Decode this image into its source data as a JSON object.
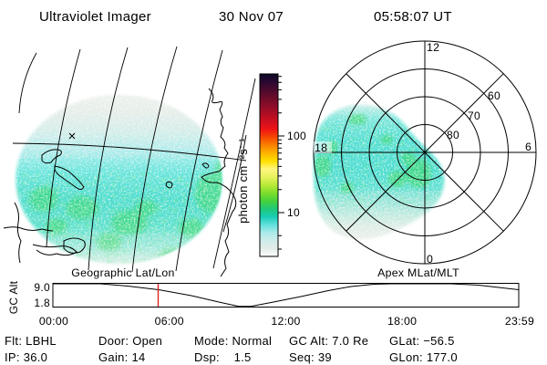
{
  "palette": {
    "background": "#ffffff",
    "foreground": "#000000",
    "data_cyan": "#47dcd0",
    "data_green": "#30d455",
    "data_pale_gray": "#d9dedb",
    "marker_red": "#dd2222"
  },
  "header": {
    "instrument": "Ultraviolet Imager",
    "date": "30 Nov 07",
    "time": "05:58:07 UT"
  },
  "geo_panel": {
    "caption": "Geographic Lat/Lon"
  },
  "colorbar": {
    "label": "photon cm⁻²s⁻¹",
    "tick_labels": [
      "100",
      "10"
    ],
    "colors_top_to_bottom": [
      "#0a0a28",
      "#2b0830",
      "#4a0a2e",
      "#6b0c2a",
      "#8c0d28",
      "#ad0e24",
      "#d01020",
      "#ee1414",
      "#f64a00",
      "#fa8200",
      "#fdb400",
      "#ffe000",
      "#fff780",
      "#e8f25c",
      "#b8ea38",
      "#7ede2c",
      "#46d23c",
      "#20c878",
      "#18ccb4",
      "#60e0dc",
      "#aaeae8",
      "#cfeceb",
      "#e2ece7",
      "#ffffff"
    ]
  },
  "polar_panel": {
    "caption": "Apex MLat/MLT",
    "mlt_top": "12",
    "mlt_left": "18",
    "mlt_right": "6",
    "mlt_bottom": "0",
    "mlat_ring_labels": [
      "80",
      "70",
      "60"
    ]
  },
  "orbit_chart": {
    "ylabel": "GC Alt",
    "ytick_top": "9.0",
    "ytick_bottom": "1.8",
    "xtick_labels": [
      "00:00",
      "06:00",
      "12:00",
      "18:00",
      "23:59"
    ],
    "marker_color": "#dd2222"
  },
  "status": {
    "row1": [
      "Flt: LBHL",
      "Door: Open",
      "Mode: Normal",
      "GC Alt: 7.0 Re",
      "GLat: −56.5"
    ],
    "row2": [
      "IP: 36.0",
      "Gain: 14",
      "Dsp:    1.5",
      "Seq: 39",
      "GLon: 177.0"
    ]
  },
  "chart_data": [
    {
      "type": "heatmap",
      "name": "geographic-uv-image",
      "title": "Geographic Lat/Lon",
      "colorscale_label": "photon cm⁻²s⁻¹",
      "colorscale_ticks": [
        100,
        10
      ],
      "scale": "log",
      "description": "Circular UV imager field of view over southern-hemisphere Pacific (New Zealand visible); faint gray airglow at top, cyan ~5-8 photons, green patches ~10-20 photons in lower half; black geographic lat/lon grid and coastlines overlaid."
    },
    {
      "type": "heatmap",
      "name": "polar-uv-image",
      "title": "Apex MLat/MLT",
      "rings_mlat": [
        80,
        70,
        60,
        50
      ],
      "mlt_axes": [
        0,
        6,
        12,
        18
      ],
      "description": "Same UV emission mapped to apex magnetic latitude / MLT; cyan-green emission blob covering roughly 9-21 MLT on the dusk (18 MLT) side from ~50 MLat past the pole, fading gray toward lower left."
    },
    {
      "type": "line",
      "name": "gc-alt-orbit",
      "ylabel": "GC Alt",
      "yticks": [
        9.0,
        1.8
      ],
      "xticks": [
        "00:00",
        "06:00",
        "12:00",
        "18:00",
        "23:59"
      ],
      "x_hours": [
        0.0,
        2.4,
        3.9,
        5.4,
        7.1,
        8.6,
        9.6,
        10.2,
        11.4,
        12.8,
        14.2,
        15.4,
        16.5,
        17.5,
        20.5,
        21.9,
        24.0
      ],
      "gc_alt_re": [
        8.9,
        8.9,
        8.2,
        7.1,
        5.3,
        3.3,
        2.0,
        2.0,
        3.3,
        5.0,
        6.8,
        8.0,
        8.7,
        8.9,
        8.9,
        8.5,
        7.1
      ],
      "marker_time": "05:58",
      "marker_color": "#dd2222"
    }
  ]
}
